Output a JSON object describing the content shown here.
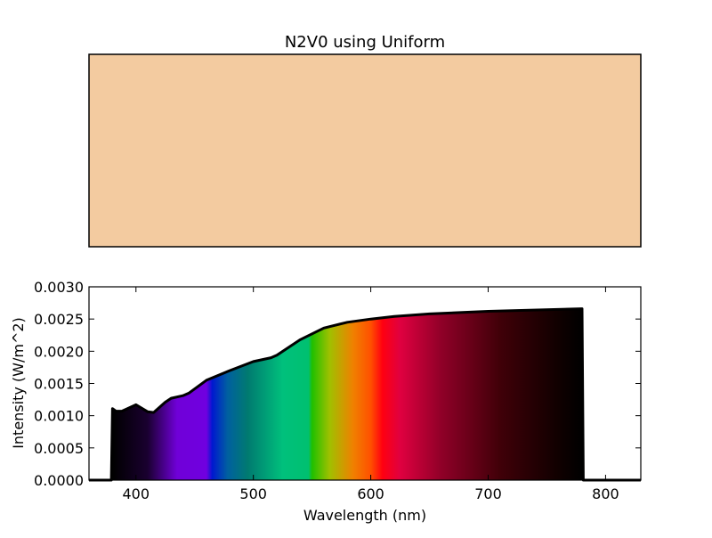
{
  "chart_data": [
    {
      "type": "table",
      "title": "N2V0 using Uniform",
      "swatch_color": "#f3cba0"
    },
    {
      "type": "area",
      "title": "",
      "xlabel": "Wavelength (nm)",
      "ylabel": "Intensity (W/m^2)",
      "xlim": [
        360,
        830
      ],
      "ylim": [
        0,
        0.003
      ],
      "xticks": [
        "400",
        "500",
        "600",
        "700",
        "800"
      ],
      "xtick_values": [
        400,
        500,
        600,
        700,
        800
      ],
      "yticks": [
        "0.0000",
        "0.0005",
        "0.0010",
        "0.0015",
        "0.0020",
        "0.0025",
        "0.0030"
      ],
      "ytick_values": [
        0,
        0.0005,
        0.001,
        0.0015,
        0.002,
        0.0025,
        0.003
      ],
      "x": [
        360,
        379,
        380,
        383,
        388,
        400,
        410,
        415,
        425,
        430,
        440,
        445,
        460,
        480,
        500,
        515,
        520,
        540,
        560,
        580,
        600,
        620,
        650,
        700,
        780,
        781,
        830
      ],
      "y": [
        0,
        0,
        0.00111,
        0.00107,
        0.00107,
        0.00117,
        0.00106,
        0.00105,
        0.00121,
        0.00127,
        0.00131,
        0.00135,
        0.00155,
        0.0017,
        0.00184,
        0.0019,
        0.00194,
        0.00218,
        0.00236,
        0.00245,
        0.0025,
        0.00254,
        0.00258,
        0.00262,
        0.00266,
        0,
        0
      ],
      "spectrum_colors": [
        {
          "wl": 380,
          "color": "#000000"
        },
        {
          "wl": 410,
          "color": "#1a0030"
        },
        {
          "wl": 435,
          "color": "#7000d8"
        },
        {
          "wl": 460,
          "color": "#7000e0"
        },
        {
          "wl": 465,
          "color": "#0018d0"
        },
        {
          "wl": 478,
          "color": "#0060a0"
        },
        {
          "wl": 495,
          "color": "#007a70"
        },
        {
          "wl": 525,
          "color": "#00c07c"
        },
        {
          "wl": 547,
          "color": "#00c070"
        },
        {
          "wl": 550,
          "color": "#20c000"
        },
        {
          "wl": 565,
          "color": "#a0c000"
        },
        {
          "wl": 585,
          "color": "#f08000"
        },
        {
          "wl": 600,
          "color": "#ff5000"
        },
        {
          "wl": 610,
          "color": "#ff0010"
        },
        {
          "wl": 625,
          "color": "#e00040"
        },
        {
          "wl": 660,
          "color": "#900028"
        },
        {
          "wl": 710,
          "color": "#400008"
        },
        {
          "wl": 760,
          "color": "#100000"
        },
        {
          "wl": 780,
          "color": "#000000"
        }
      ]
    }
  ]
}
